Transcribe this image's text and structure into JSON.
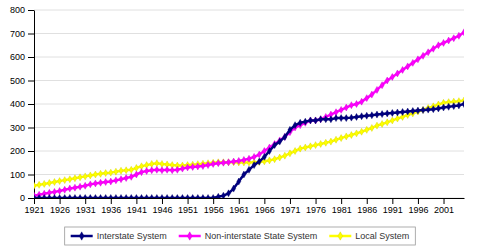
{
  "chart_data": {
    "type": "line",
    "x": [
      1921,
      1922,
      1923,
      1924,
      1925,
      1926,
      1927,
      1928,
      1929,
      1930,
      1931,
      1932,
      1933,
      1934,
      1935,
      1936,
      1937,
      1938,
      1939,
      1940,
      1941,
      1942,
      1943,
      1944,
      1945,
      1946,
      1947,
      1948,
      1949,
      1950,
      1951,
      1952,
      1953,
      1954,
      1955,
      1956,
      1957,
      1958,
      1959,
      1960,
      1961,
      1962,
      1963,
      1964,
      1965,
      1966,
      1967,
      1968,
      1969,
      1970,
      1971,
      1972,
      1973,
      1974,
      1975,
      1976,
      1977,
      1978,
      1979,
      1980,
      1981,
      1982,
      1983,
      1984,
      1985,
      1986,
      1987,
      1988,
      1989,
      1990,
      1991,
      1992,
      1993,
      1994,
      1995,
      1996,
      1997,
      1998,
      1999,
      2000,
      2001,
      2002,
      2003,
      2004,
      2005
    ],
    "series": [
      {
        "name": "Interstate System",
        "color": "#000080",
        "marker": "diamond",
        "values": [
          0,
          0,
          0,
          0,
          0,
          0,
          0,
          0,
          0,
          0,
          0,
          0,
          0,
          0,
          0,
          0,
          0,
          0,
          0,
          0,
          0,
          0,
          0,
          0,
          0,
          0,
          0,
          0,
          0,
          0,
          0,
          0,
          0,
          0,
          0,
          0,
          5,
          10,
          20,
          40,
          70,
          100,
          120,
          140,
          155,
          175,
          200,
          225,
          240,
          260,
          290,
          310,
          320,
          325,
          330,
          330,
          335,
          335,
          335,
          340,
          340,
          340,
          342,
          345,
          348,
          350,
          352,
          355,
          357,
          360,
          362,
          364,
          366,
          368,
          370,
          372,
          374,
          376,
          378,
          381,
          385,
          388,
          391,
          394,
          400
        ]
      },
      {
        "name": "Non-interstate State System",
        "color": "#FF00FF",
        "marker": "diamond",
        "values": [
          10,
          14,
          18,
          22,
          26,
          30,
          35,
          40,
          44,
          48,
          52,
          58,
          62,
          65,
          68,
          70,
          75,
          80,
          85,
          90,
          100,
          110,
          115,
          118,
          120,
          118,
          120,
          118,
          120,
          125,
          130,
          132,
          134,
          136,
          140,
          145,
          148,
          150,
          152,
          155,
          158,
          162,
          167,
          175,
          185,
          200,
          215,
          230,
          245,
          260,
          280,
          300,
          310,
          320,
          330,
          330,
          335,
          345,
          355,
          365,
          375,
          385,
          395,
          400,
          410,
          425,
          440,
          460,
          480,
          500,
          515,
          530,
          545,
          560,
          575,
          590,
          605,
          620,
          635,
          650,
          660,
          670,
          680,
          690,
          705
        ]
      },
      {
        "name": "Local System",
        "color": "#FFFF00",
        "marker": "diamond",
        "values": [
          52,
          56,
          60,
          64,
          68,
          72,
          76,
          80,
          84,
          88,
          92,
          96,
          100,
          103,
          106,
          108,
          112,
          116,
          118,
          120,
          128,
          135,
          140,
          145,
          148,
          145,
          143,
          140,
          138,
          138,
          140,
          142,
          144,
          146,
          148,
          150,
          152,
          152,
          152,
          152,
          151,
          151,
          151,
          152,
          153,
          156,
          160,
          165,
          172,
          180,
          190,
          200,
          210,
          215,
          220,
          225,
          230,
          235,
          240,
          248,
          255,
          262,
          268,
          275,
          282,
          290,
          298,
          308,
          315,
          322,
          330,
          338,
          345,
          353,
          360,
          368,
          375,
          383,
          390,
          398,
          405,
          408,
          410,
          412,
          415
        ]
      }
    ],
    "xlim": [
      1921,
      2005
    ],
    "xticks": [
      1921,
      1926,
      1931,
      1936,
      1941,
      1946,
      1951,
      1956,
      1961,
      1966,
      1971,
      1976,
      1981,
      1986,
      1991,
      1996,
      2001
    ],
    "ylim": [
      0,
      800
    ],
    "yticks": [
      0,
      100,
      200,
      300,
      400,
      500,
      600,
      700,
      800
    ],
    "grid": true,
    "legend": "bottom"
  }
}
